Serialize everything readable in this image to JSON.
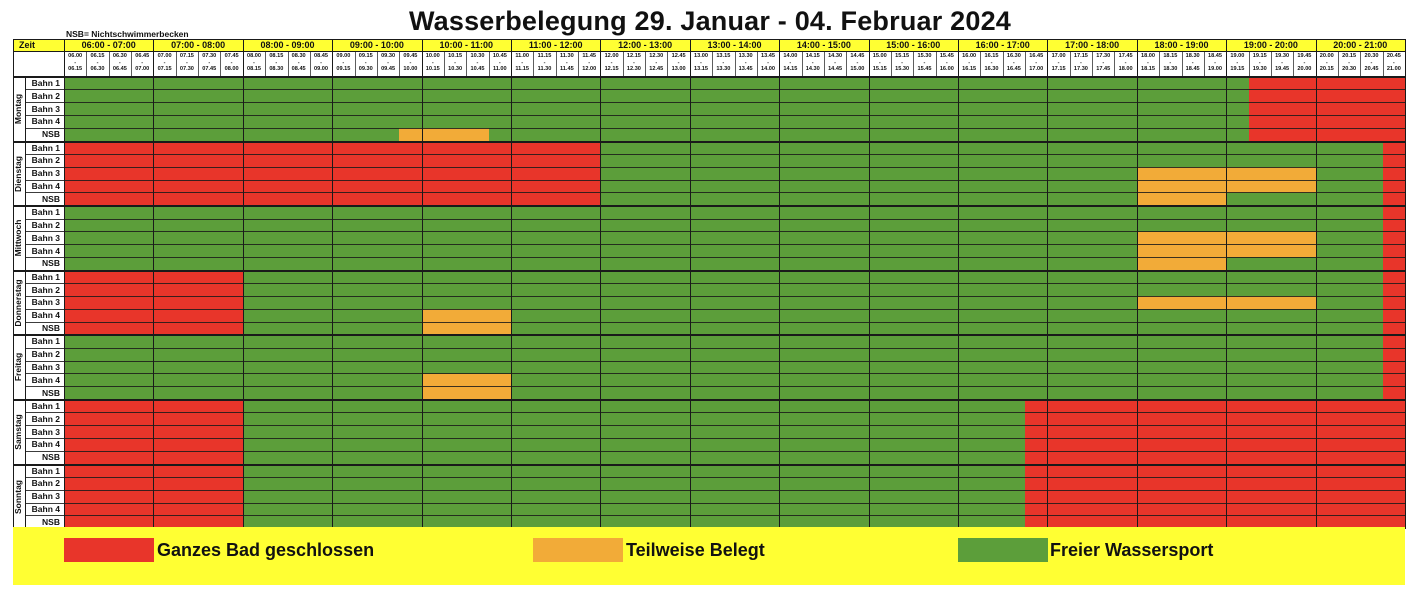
{
  "title": "Wasserbelegung 29. Januar - 04. Februar 2024",
  "note": "NSB= Nichtschwimmerbecken",
  "zeit_label": "Zeit",
  "hours": [
    "06:00 - 07:00",
    "07:00 - 08:00",
    "08:00 - 09:00",
    "09:00 - 10:00",
    "10:00 - 11:00",
    "11:00 - 12:00",
    "12:00 - 13:00",
    "13:00 - 14:00",
    "14:00 - 15:00",
    "15:00 - 16:00",
    "16:00 - 17:00",
    "17:00 - 18:00",
    "18:00 - 19:00",
    "19:00 - 20:00",
    "20:00 - 21:00"
  ],
  "slots_start": [
    "06.00",
    "06.15",
    "06.30",
    "06.45",
    "07.00",
    "07.15",
    "07.30",
    "07.45",
    "08.00",
    "08.15",
    "08.30",
    "08.45",
    "09.00",
    "09.15",
    "09.30",
    "09.45",
    "10.00",
    "10.15",
    "10.30",
    "10.45",
    "11.00",
    "11.15",
    "11.30",
    "11.45",
    "12.00",
    "12.15",
    "12.30",
    "12.45",
    "13.00",
    "13.15",
    "13.30",
    "13.45",
    "14.00",
    "14.15",
    "14.30",
    "14.45",
    "15.00",
    "15.15",
    "15.30",
    "15.45",
    "16.00",
    "16.15",
    "16.30",
    "16.45",
    "17.00",
    "17.15",
    "17.30",
    "17.45",
    "18.00",
    "18.15",
    "18.30",
    "18.45",
    "19.00",
    "19.15",
    "19.30",
    "19.45",
    "20.00",
    "20.15",
    "20.30",
    "20.45"
  ],
  "slots_end": [
    "06.15",
    "06.30",
    "06.45",
    "07.00",
    "07.15",
    "07.30",
    "07.45",
    "08.00",
    "08.15",
    "08.30",
    "08.45",
    "09.00",
    "09.15",
    "09.30",
    "09.45",
    "10.00",
    "10.15",
    "10.30",
    "10.45",
    "11.00",
    "11.15",
    "11.30",
    "11.45",
    "12.00",
    "12.15",
    "12.30",
    "12.45",
    "13.00",
    "13.15",
    "13.30",
    "13.45",
    "14.00",
    "14.15",
    "14.30",
    "14.45",
    "15.00",
    "15.15",
    "15.30",
    "15.45",
    "16.00",
    "16.15",
    "16.30",
    "16.45",
    "17.00",
    "17.15",
    "17.30",
    "17.45",
    "18.00",
    "18.15",
    "18.30",
    "18.45",
    "19.00",
    "19.15",
    "19.30",
    "19.45",
    "20.00",
    "20.15",
    "20.30",
    "20.45",
    "21.00"
  ],
  "lanes": [
    "Bahn 1",
    "Bahn 2",
    "Bahn 3",
    "Bahn 4",
    "NSB"
  ],
  "days": [
    {
      "name": "Montag",
      "blocks": [
        {
          "lanes": [
            0,
            1,
            2,
            3,
            4
          ],
          "from": "19.15",
          "to": "21.00",
          "status": "closed"
        },
        {
          "lanes": [
            4
          ],
          "from": "09.45",
          "to": "10.45",
          "status": "partial"
        }
      ]
    },
    {
      "name": "Dienstag",
      "blocks": [
        {
          "lanes": [
            0,
            1,
            2,
            3,
            4
          ],
          "from": "06.00",
          "to": "12.00",
          "status": "closed"
        },
        {
          "lanes": [
            2,
            3
          ],
          "from": "18.00",
          "to": "20.00",
          "status": "partial"
        },
        {
          "lanes": [
            4
          ],
          "from": "18.00",
          "to": "19.00",
          "status": "partial"
        },
        {
          "lanes": [
            0,
            1,
            2,
            3,
            4
          ],
          "from": "20.45",
          "to": "21.00",
          "status": "closed"
        }
      ]
    },
    {
      "name": "Mittwoch",
      "blocks": [
        {
          "lanes": [
            2,
            3
          ],
          "from": "18.00",
          "to": "20.00",
          "status": "partial"
        },
        {
          "lanes": [
            4
          ],
          "from": "18.00",
          "to": "19.00",
          "status": "partial"
        },
        {
          "lanes": [
            0,
            1,
            2,
            3,
            4
          ],
          "from": "20.45",
          "to": "21.00",
          "status": "closed"
        }
      ]
    },
    {
      "name": "Donnerstag",
      "blocks": [
        {
          "lanes": [
            0,
            1,
            2,
            3,
            4
          ],
          "from": "06.00",
          "to": "08.00",
          "status": "closed"
        },
        {
          "lanes": [
            3,
            4
          ],
          "from": "10.00",
          "to": "11.00",
          "status": "partial"
        },
        {
          "lanes": [
            2
          ],
          "from": "18.00",
          "to": "20.00",
          "status": "partial"
        },
        {
          "lanes": [
            0,
            1,
            2,
            3,
            4
          ],
          "from": "20.45",
          "to": "21.00",
          "status": "closed"
        }
      ]
    },
    {
      "name": "Freitag",
      "blocks": [
        {
          "lanes": [
            3,
            4
          ],
          "from": "10.00",
          "to": "11.00",
          "status": "partial"
        },
        {
          "lanes": [
            0,
            1,
            2,
            3,
            4
          ],
          "from": "20.45",
          "to": "21.00",
          "status": "closed"
        }
      ]
    },
    {
      "name": "Samstag",
      "blocks": [
        {
          "lanes": [
            0,
            1,
            2,
            3,
            4
          ],
          "from": "06.00",
          "to": "08.00",
          "status": "closed"
        },
        {
          "lanes": [
            0,
            1,
            2,
            3,
            4
          ],
          "from": "16.45",
          "to": "21.00",
          "status": "closed"
        }
      ]
    },
    {
      "name": "Sonntag",
      "blocks": [
        {
          "lanes": [
            0,
            1,
            2,
            3,
            4
          ],
          "from": "06.00",
          "to": "08.00",
          "status": "closed"
        },
        {
          "lanes": [
            0,
            1,
            2,
            3,
            4
          ],
          "from": "16.45",
          "to": "21.00",
          "status": "closed"
        }
      ]
    }
  ],
  "colors": {
    "closed": "#e8352a",
    "partial": "#f2ab38",
    "free": "#5c9e3a",
    "header": "#ffff33",
    "lines": "#1a1a1a"
  },
  "legend": [
    {
      "status": "closed",
      "label": "Ganzes Bad geschlossen"
    },
    {
      "status": "partial",
      "label": "Teilweise Belegt"
    },
    {
      "status": "free",
      "label": "Freier Wassersport"
    }
  ]
}
